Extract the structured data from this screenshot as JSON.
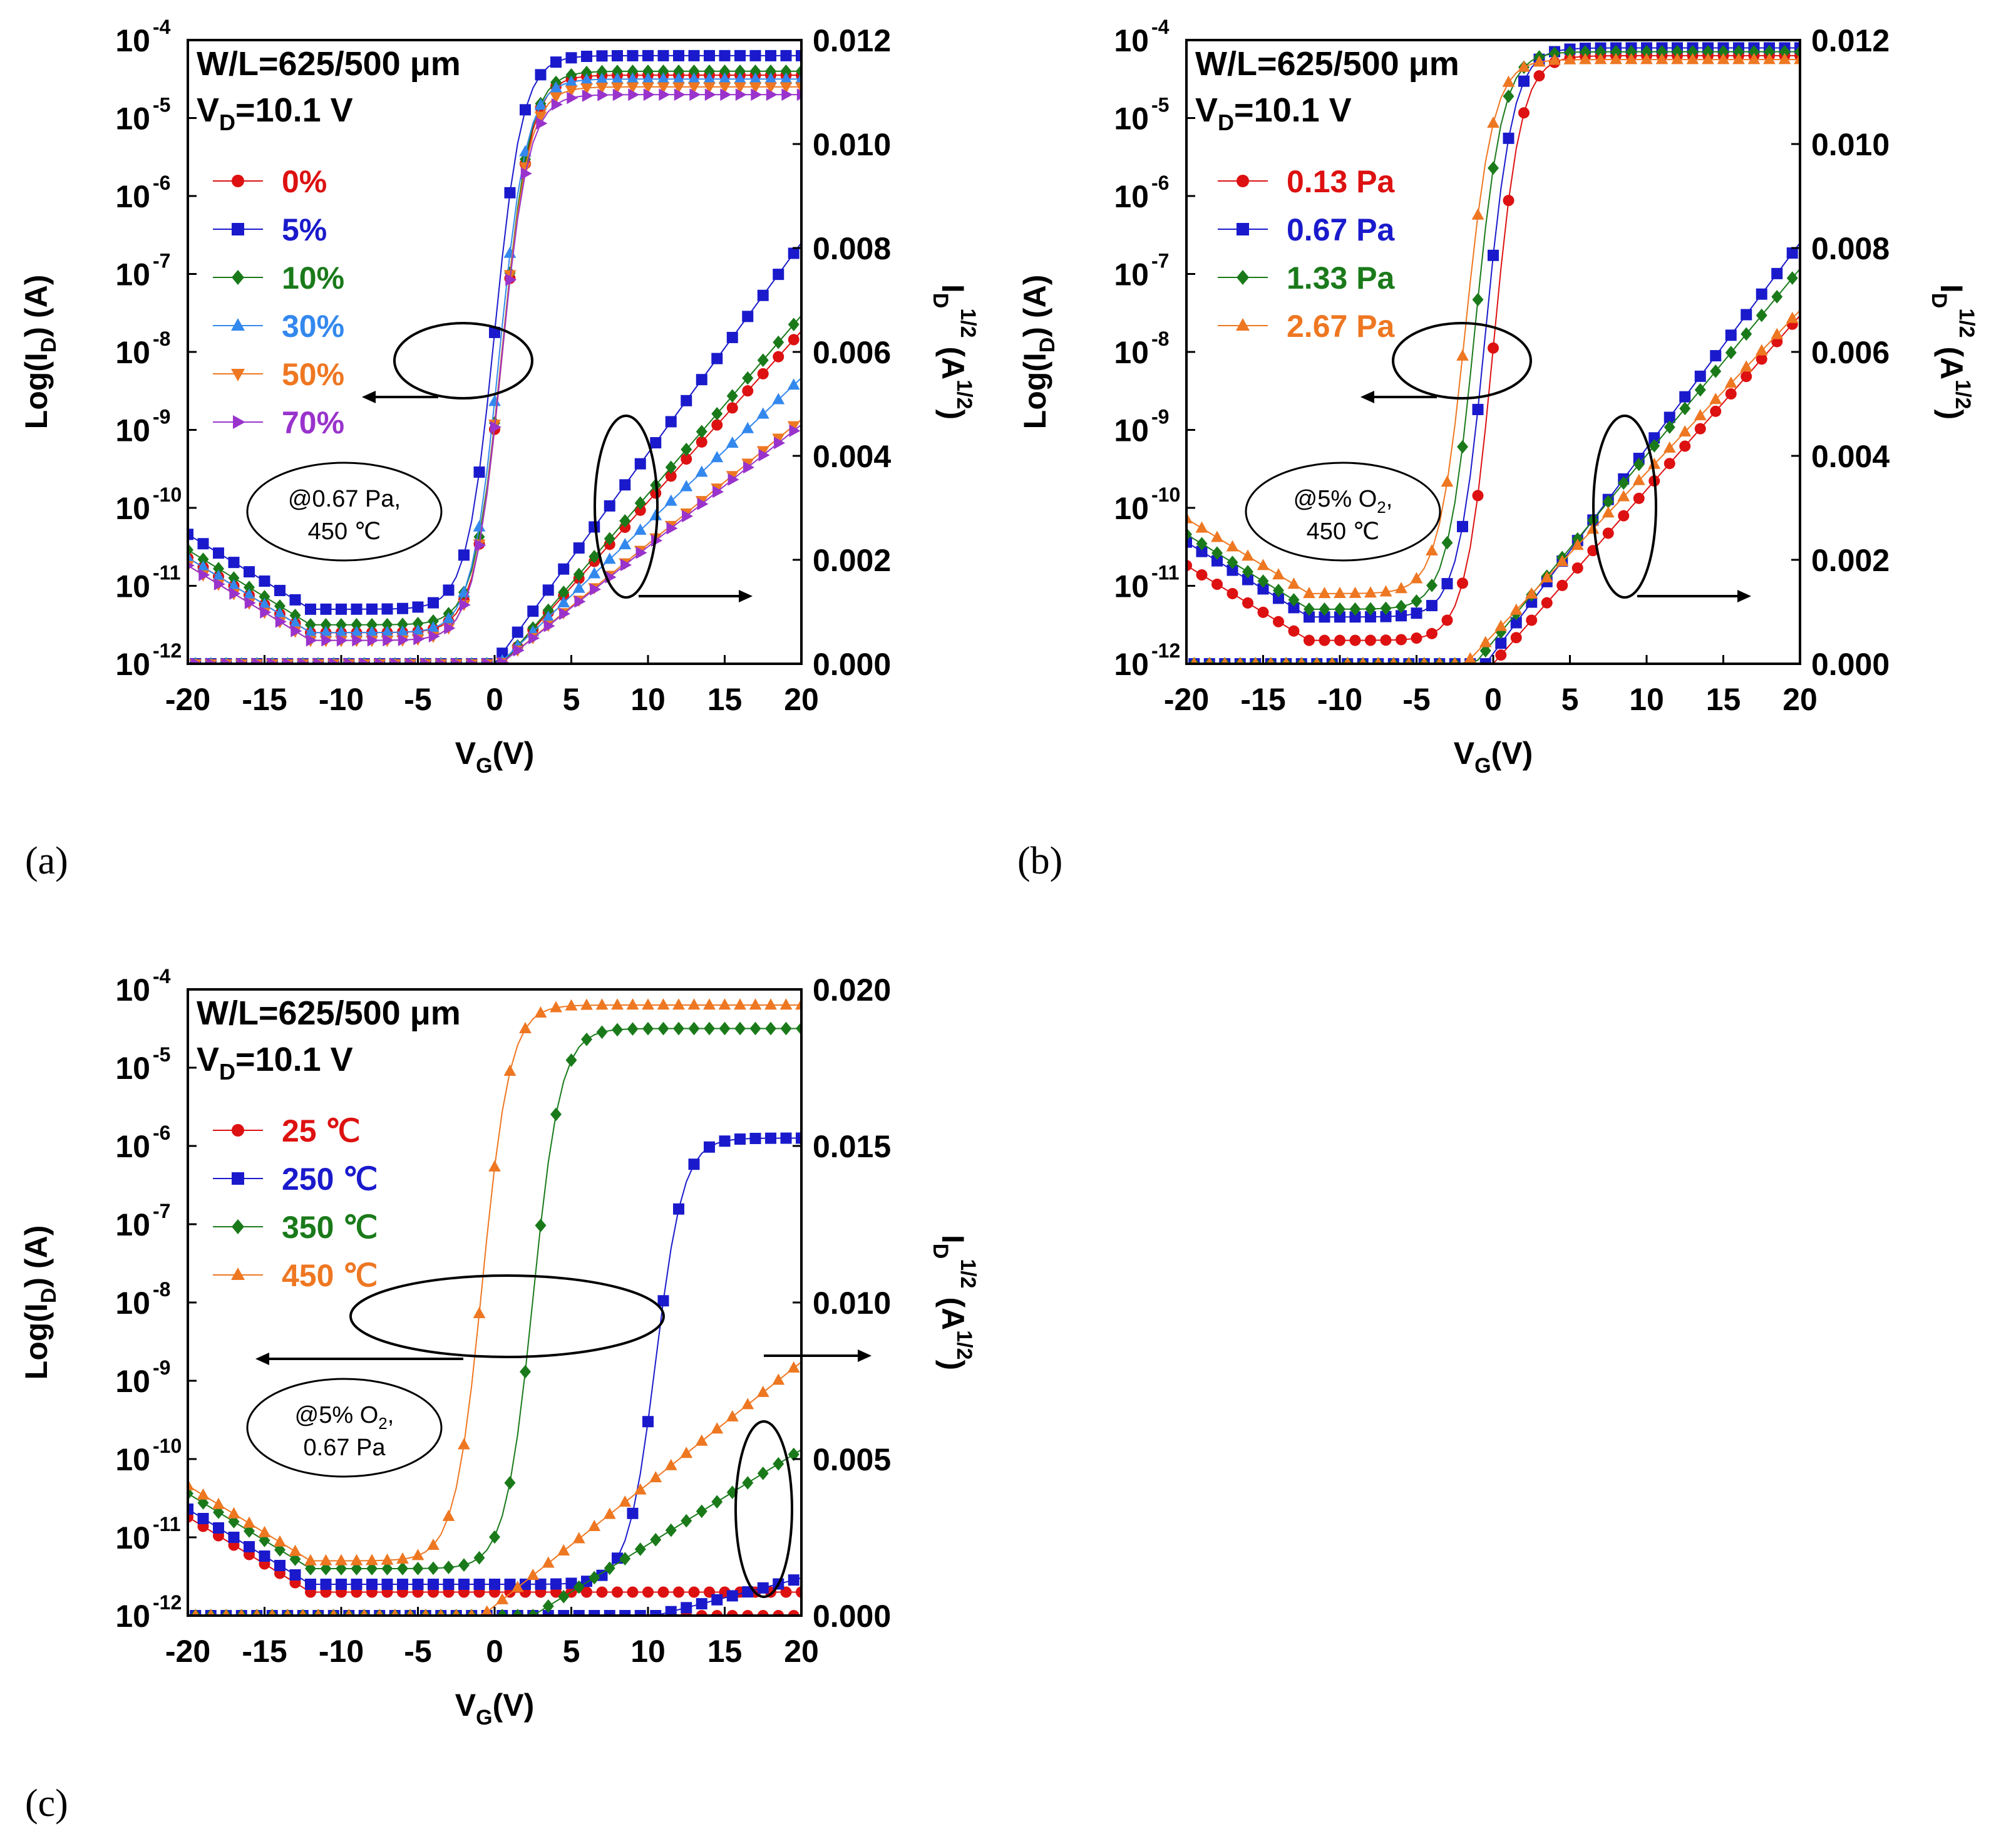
{
  "chart_data": [
    {
      "type": "scatter",
      "panel_label": "(a)",
      "title": "",
      "xlabel": "V_G(V)",
      "ylabel_left": "Log(I_D) (A)",
      "ylabel_right": "I_D^1/2 (A^1/2)",
      "x_ticks": [
        "-20",
        "-15",
        "-10",
        "-5",
        "0",
        "5",
        "10",
        "15",
        "20"
      ],
      "y_left_ticks": [
        "10-12",
        "10-11",
        "10-10",
        "10-9",
        "10-8",
        "10-7",
        "10-6",
        "10-5",
        "10-4"
      ],
      "y_right_ticks": [
        "0.000",
        "0.002",
        "0.004",
        "0.006",
        "0.008",
        "0.010",
        "0.012"
      ],
      "xlim": [
        -20,
        20
      ],
      "ylim_left_log10": [
        -12,
        -4
      ],
      "ylim_right": [
        0,
        0.012
      ],
      "annotation_lines": [
        "W/L=625/500 μm",
        "V_D=10.1 V"
      ],
      "condition_lines": [
        "@0.67 Pa,",
        "450 ℃"
      ],
      "series": [
        {
          "name": "0%",
          "color": "#dd1111",
          "marker": "circle",
          "vth": 0.5,
          "log_on": -4.45,
          "log_off": -11.6,
          "sqrt_max": 0.0064
        },
        {
          "name": "5%",
          "color": "#1a1acc",
          "marker": "square",
          "vth": 0.0,
          "log_on": -4.2,
          "log_off": -11.3,
          "sqrt_max": 0.0081
        },
        {
          "name": "10%",
          "color": "#1a7a1a",
          "marker": "diamond",
          "vth": 0.5,
          "log_on": -4.4,
          "log_off": -11.5,
          "sqrt_max": 0.0067
        },
        {
          "name": "30%",
          "color": "#3388ee",
          "marker": "triangle",
          "vth": 0.3,
          "log_on": -4.5,
          "log_off": -11.6,
          "sqrt_max": 0.0055
        },
        {
          "name": "50%",
          "color": "#ee7722",
          "marker": "triangle-down",
          "vth": 0.4,
          "log_on": -4.6,
          "log_off": -11.7,
          "sqrt_max": 0.0047
        },
        {
          "name": "70%",
          "color": "#9933cc",
          "marker": "triangle-right",
          "vth": 0.4,
          "log_on": -4.7,
          "log_off": -11.7,
          "sqrt_max": 0.0046
        }
      ]
    },
    {
      "type": "scatter",
      "panel_label": "(b)",
      "title": "",
      "xlabel": "V_G(V)",
      "ylabel_left": "Log(I_D) (A)",
      "ylabel_right": "I_D^1/2 (A^1/2)",
      "x_ticks": [
        "-20",
        "-15",
        "-10",
        "-5",
        "0",
        "5",
        "10",
        "15",
        "20"
      ],
      "y_left_ticks": [
        "10-12",
        "10-11",
        "10-10",
        "10-9",
        "10-8",
        "10-7",
        "10-6",
        "10-5",
        "10-4"
      ],
      "y_right_ticks": [
        "0.000",
        "0.002",
        "0.004",
        "0.006",
        "0.008",
        "0.010",
        "0.012"
      ],
      "xlim": [
        -20,
        20
      ],
      "ylim_left_log10": [
        -12,
        -4
      ],
      "ylim_right": [
        0,
        0.012
      ],
      "annotation_lines": [
        "W/L=625/500 μm",
        "V_D=10.1 V"
      ],
      "condition_lines": [
        "@5% O",
        "2",
        ",",
        "450 ℃"
      ],
      "series": [
        {
          "name": "0.13 Pa",
          "color": "#dd1111",
          "marker": "circle",
          "vth": 0.0,
          "log_on": -4.2,
          "log_off": -11.7,
          "sqrt_max": 0.0067
        },
        {
          "name": "0.67 Pa",
          "color": "#1a1acc",
          "marker": "square",
          "vth": -0.5,
          "log_on": -4.1,
          "log_off": -11.4,
          "sqrt_max": 0.0081
        },
        {
          "name": "1.33 Pa",
          "color": "#1a7a1a",
          "marker": "diamond",
          "vth": -1.2,
          "log_on": -4.15,
          "log_off": -11.3,
          "sqrt_max": 0.0076
        },
        {
          "name": "2.67 Pa",
          "color": "#ee7722",
          "marker": "triangle",
          "vth": -1.8,
          "log_on": -4.25,
          "log_off": -11.1,
          "sqrt_max": 0.0068
        }
      ]
    },
    {
      "type": "scatter",
      "panel_label": "(c)",
      "title": "",
      "xlabel": "V_G(V)",
      "ylabel_left": "Log(I_D) (A)",
      "ylabel_right": "I_D^1/2 (A^1/2)",
      "x_ticks": [
        "-20",
        "-15",
        "-10",
        "-5",
        "0",
        "5",
        "10",
        "15",
        "20"
      ],
      "y_left_ticks": [
        "10-12",
        "10-11",
        "10-10",
        "10-9",
        "10-8",
        "10-7",
        "10-6",
        "10-5",
        "10-4"
      ],
      "y_right_ticks": [
        "0.000",
        "0.005",
        "0.010",
        "0.015",
        "0.020"
      ],
      "xlim": [
        -20,
        20
      ],
      "ylim_left_log10": [
        -12,
        -4
      ],
      "ylim_right": [
        0,
        0.02
      ],
      "annotation_lines": [
        "W/L=625/500 μm",
        "V_D=10.1 V"
      ],
      "condition_lines": [
        "@5% O",
        "2",
        ",",
        "0.67 Pa"
      ],
      "series": [
        {
          "name": "25 ℃",
          "color": "#dd1111",
          "marker": "circle",
          "vth": 30,
          "log_on": -11.7,
          "log_off": -11.7,
          "sqrt_max": 0.0008
        },
        {
          "name": "250 ℃",
          "color": "#1a1acc",
          "marker": "square",
          "vth": 10.5,
          "log_on": -5.9,
          "log_off": -11.6,
          "sqrt_max": 0.0012
        },
        {
          "name": "350 ℃",
          "color": "#1a7a1a",
          "marker": "diamond",
          "vth": 2.5,
          "log_on": -4.5,
          "log_off": -11.4,
          "sqrt_max": 0.0053
        },
        {
          "name": "450 ℃",
          "color": "#ee7722",
          "marker": "triangle",
          "vth": -0.8,
          "log_on": -4.2,
          "log_off": -11.3,
          "sqrt_max": 0.0081
        }
      ]
    }
  ]
}
